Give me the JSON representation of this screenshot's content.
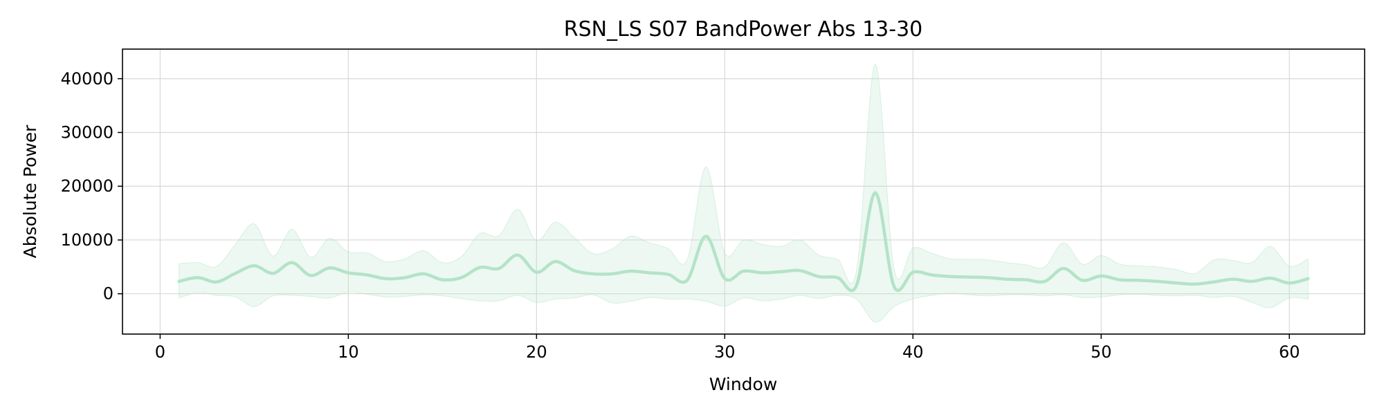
{
  "chart_data": {
    "type": "line",
    "title": "RSN_LS S07 BandPower Abs 13-30",
    "xlabel": "Window",
    "ylabel": "Absolute Power",
    "xlim": [
      -2,
      64
    ],
    "ylim": [
      -7500,
      45500
    ],
    "xticks": [
      0,
      10,
      20,
      30,
      40,
      50,
      60
    ],
    "yticks": [
      0,
      10000,
      20000,
      30000,
      40000
    ],
    "grid": true,
    "legend": "none",
    "colors": {
      "line": "#b4e3c7",
      "band": "#b4e3c7"
    },
    "x": [
      1,
      2,
      3,
      4,
      5,
      6,
      7,
      8,
      9,
      10,
      11,
      12,
      13,
      14,
      15,
      16,
      17,
      18,
      19,
      20,
      21,
      22,
      23,
      24,
      25,
      26,
      27,
      28,
      29,
      30,
      31,
      32,
      33,
      34,
      35,
      36,
      37,
      38,
      39,
      40,
      41,
      42,
      43,
      44,
      45,
      46,
      47,
      48,
      49,
      50,
      51,
      52,
      53,
      54,
      55,
      56,
      57,
      58,
      59,
      60,
      61
    ],
    "series": [
      {
        "values": [
          2300,
          3000,
          2200,
          3800,
          5200,
          3800,
          5800,
          3400,
          4800,
          3900,
          3500,
          2800,
          3000,
          3700,
          2600,
          3000,
          4900,
          4700,
          7200,
          4000,
          6000,
          4300,
          3700,
          3700,
          4200,
          3900,
          3600,
          2500,
          10700,
          2800,
          4200,
          3900,
          4100,
          4300,
          3200,
          3000,
          1500,
          18800,
          1300,
          4000,
          3500,
          3200,
          3100,
          3000,
          2700,
          2600,
          2300,
          4700,
          2500,
          3300,
          2600,
          2500,
          2300,
          2000,
          1800,
          2200,
          2700,
          2300,
          2900,
          2000,
          2800
        ],
        "lower": [
          -800,
          200,
          -300,
          -600,
          -2400,
          -400,
          -300,
          -500,
          -800,
          300,
          -100,
          -600,
          -500,
          -200,
          -400,
          -900,
          -1300,
          -1300,
          -300,
          -1600,
          -1000,
          -800,
          -200,
          -1700,
          -1400,
          -700,
          -1000,
          -1000,
          -1400,
          -2300,
          -800,
          -1300,
          -1000,
          -300,
          -900,
          -300,
          -1000,
          -5300,
          -2400,
          -1000,
          -300,
          100,
          -200,
          -400,
          -200,
          -200,
          -400,
          -200,
          -700,
          -600,
          -200,
          -100,
          -300,
          -400,
          -300,
          -700,
          -500,
          -1600,
          -2600,
          -800,
          -1000
        ],
        "upper": [
          5600,
          5800,
          5100,
          9200,
          13000,
          7000,
          12000,
          6800,
          10300,
          7800,
          7600,
          6000,
          6500,
          8000,
          5800,
          6900,
          11200,
          10800,
          15700,
          9900,
          13300,
          10500,
          7500,
          8300,
          10700,
          9500,
          8400,
          6300,
          23600,
          7600,
          10000,
          9200,
          8800,
          10000,
          7200,
          6400,
          4200,
          42800,
          4500,
          8500,
          7500,
          6500,
          6400,
          6300,
          5800,
          5400,
          5000,
          9500,
          5500,
          7100,
          5500,
          5200,
          5000,
          4500,
          3800,
          6300,
          6200,
          5800,
          8800,
          5100,
          6500
        ]
      }
    ]
  }
}
